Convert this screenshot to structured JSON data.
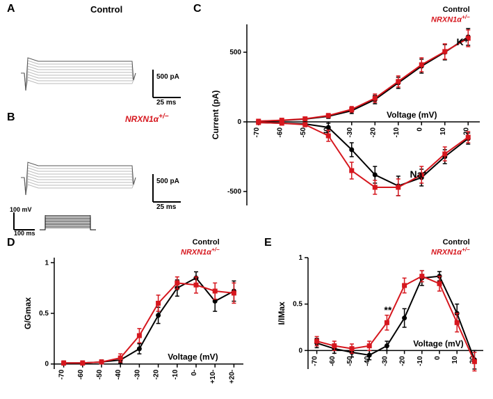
{
  "colors": {
    "control": "#000000",
    "mutant": "#d6171e",
    "trace_gray": "#bbbbbb",
    "trace_dark": "#555555",
    "bg": "#ffffff"
  },
  "labels": {
    "A": "A",
    "B": "B",
    "C": "C",
    "D": "D",
    "E": "E",
    "control_title": "Control",
    "mutant_title": "NRXN1α",
    "mutant_sup": "+/−",
    "scalebar_pA": "500 pA",
    "scalebar_ms": "25 ms",
    "stim_mV": "100 mV",
    "stim_ms": "100 ms",
    "K": "K⁺",
    "Na": "Na⁺",
    "sig": "**"
  },
  "panelC": {
    "type": "line-scatter",
    "xlabel": "Voltage (mV)",
    "ylabel": "Current (pA)",
    "xlim": [
      -75,
      25
    ],
    "ylim": [
      -600,
      700
    ],
    "xticks": [
      -70,
      -60,
      -50,
      -40,
      -30,
      -20,
      -10,
      0,
      10,
      20
    ],
    "yticks": [
      -500,
      0,
      500
    ],
    "series": [
      {
        "name": "K_control",
        "color": "#000000",
        "marker": "circle",
        "x": [
          -70,
          -60,
          -50,
          -40,
          -30,
          -20,
          -10,
          0,
          10,
          20
        ],
        "y": [
          5,
          10,
          20,
          40,
          80,
          160,
          280,
          400,
          500,
          610
        ],
        "err": [
          5,
          8,
          10,
          15,
          20,
          30,
          40,
          50,
          55,
          60
        ]
      },
      {
        "name": "K_mutant",
        "color": "#d6171e",
        "marker": "square",
        "x": [
          -70,
          -60,
          -50,
          -40,
          -30,
          -20,
          -10,
          0,
          10,
          20
        ],
        "y": [
          5,
          12,
          22,
          45,
          90,
          170,
          290,
          410,
          505,
          600
        ],
        "err": [
          5,
          8,
          10,
          15,
          20,
          30,
          40,
          50,
          55,
          60
        ]
      },
      {
        "name": "Na_control",
        "color": "#000000",
        "marker": "circle",
        "x": [
          -70,
          -60,
          -50,
          -40,
          -30,
          -20,
          -10,
          0,
          10,
          20
        ],
        "y": [
          -5,
          -10,
          -15,
          -40,
          -200,
          -380,
          -460,
          -400,
          -250,
          -120
        ],
        "err": [
          10,
          10,
          15,
          30,
          50,
          60,
          70,
          60,
          50,
          40
        ]
      },
      {
        "name": "Na_mutant",
        "color": "#d6171e",
        "marker": "square",
        "x": [
          -70,
          -60,
          -50,
          -40,
          -30,
          -20,
          -10,
          0,
          10,
          20
        ],
        "y": [
          -5,
          -10,
          -20,
          -100,
          -350,
          -470,
          -470,
          -380,
          -230,
          -110
        ],
        "err": [
          10,
          10,
          15,
          40,
          60,
          50,
          60,
          60,
          50,
          40
        ]
      }
    ]
  },
  "panelD": {
    "type": "line-scatter",
    "xlabel": "Voltage (mV)",
    "ylabel": "G/Gmax",
    "xlim": [
      -75,
      25
    ],
    "ylim": [
      -0.05,
      1.05
    ],
    "xticks": [
      -70,
      -60,
      -50,
      -40,
      -30,
      -20,
      -10,
      0,
      10,
      20
    ],
    "xtick_labels": [
      "-70",
      "-60",
      "-50",
      "-40",
      "-30",
      "-20",
      "-10",
      "0-",
      "+10-",
      "+20-"
    ],
    "yticks": [
      0.0,
      0.5,
      1.0
    ],
    "series": [
      {
        "name": "control",
        "color": "#000000",
        "marker": "circle",
        "x": [
          -70,
          -60,
          -50,
          -40,
          -30,
          -20,
          -10,
          0,
          10,
          20
        ],
        "y": [
          0.01,
          0.01,
          0.02,
          0.04,
          0.15,
          0.48,
          0.75,
          0.85,
          0.62,
          0.72
        ],
        "err": [
          0.02,
          0.02,
          0.02,
          0.03,
          0.05,
          0.08,
          0.08,
          0.06,
          0.1,
          0.1
        ]
      },
      {
        "name": "mutant",
        "color": "#d6171e",
        "marker": "square",
        "x": [
          -70,
          -60,
          -50,
          -40,
          -30,
          -20,
          -10,
          0,
          10,
          20
        ],
        "y": [
          0.01,
          0.01,
          0.02,
          0.06,
          0.28,
          0.6,
          0.8,
          0.78,
          0.72,
          0.7
        ],
        "err": [
          0.02,
          0.02,
          0.02,
          0.04,
          0.07,
          0.08,
          0.06,
          0.08,
          0.08,
          0.1
        ]
      }
    ]
  },
  "panelE": {
    "type": "line-scatter",
    "xlabel": "Voltage (mV)",
    "ylabel": "I/IMax",
    "xlim": [
      -75,
      25
    ],
    "ylim": [
      -0.2,
      1.0
    ],
    "xticks": [
      -70,
      -60,
      -50,
      -40,
      -30,
      -20,
      -10,
      0,
      10,
      20
    ],
    "yticks": [
      0.0,
      0.5,
      1.0
    ],
    "series": [
      {
        "name": "control",
        "color": "#000000",
        "marker": "circle",
        "x": [
          -70,
          -60,
          -50,
          -40,
          -30,
          -20,
          -10,
          0,
          10,
          20
        ],
        "y": [
          0.08,
          0.02,
          -0.02,
          -0.05,
          0.05,
          0.35,
          0.78,
          0.8,
          0.4,
          -0.1
        ],
        "err": [
          0.05,
          0.05,
          0.05,
          0.05,
          0.05,
          0.1,
          0.08,
          0.05,
          0.1,
          0.1
        ]
      },
      {
        "name": "mutant",
        "color": "#d6171e",
        "marker": "square",
        "x": [
          -70,
          -60,
          -50,
          -40,
          -30,
          -20,
          -10,
          0,
          10,
          20
        ],
        "y": [
          0.1,
          0.05,
          0.02,
          0.05,
          0.3,
          0.7,
          0.8,
          0.72,
          0.3,
          -0.12
        ],
        "err": [
          0.05,
          0.05,
          0.05,
          0.05,
          0.08,
          0.08,
          0.06,
          0.08,
          0.1,
          0.1
        ]
      }
    ],
    "sig_at_x": -30
  }
}
